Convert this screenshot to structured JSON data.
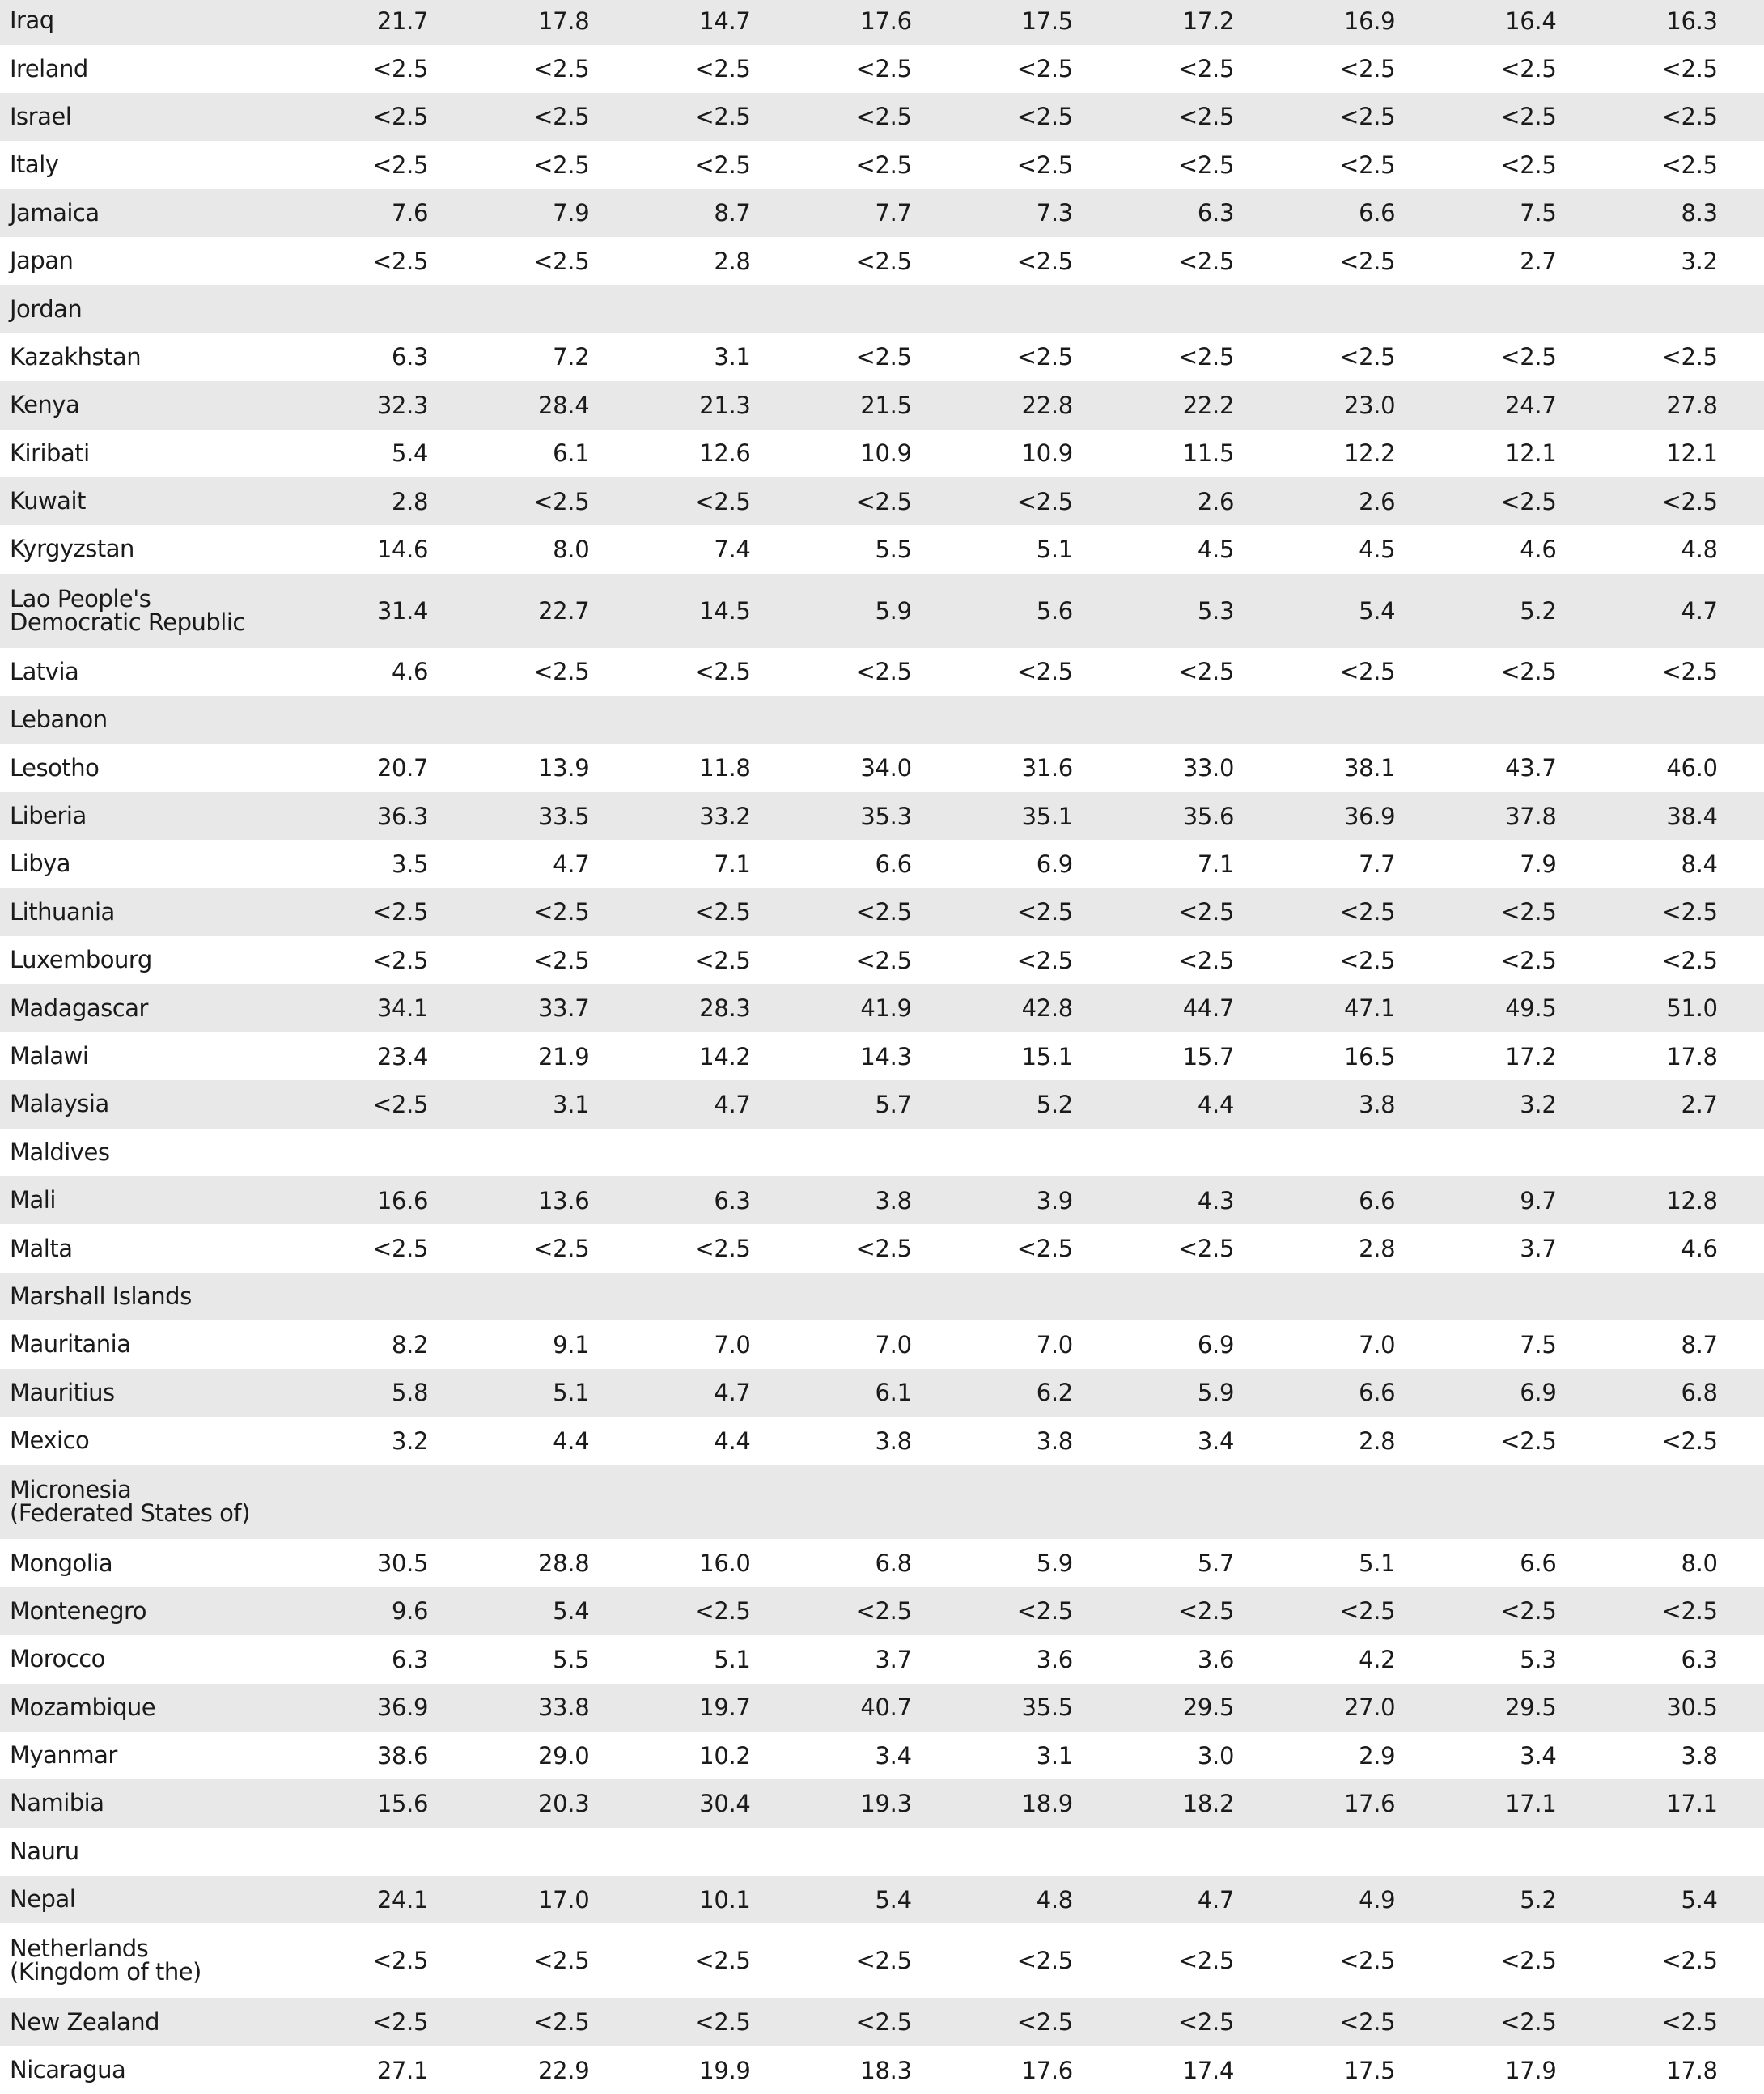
{
  "rows": [
    {
      "name": "Iraq",
      "values": [
        "21.7",
        "17.8",
        "14.7",
        "17.6",
        "17.5",
        "17.2",
        "16.9",
        "16.4",
        "16.3"
      ]
    },
    {
      "name": "Ireland",
      "values": [
        "<2.5",
        "<2.5",
        "<2.5",
        "<2.5",
        "<2.5",
        "<2.5",
        "<2.5",
        "<2.5",
        "<2.5"
      ]
    },
    {
      "name": "Israel",
      "values": [
        "<2.5",
        "<2.5",
        "<2.5",
        "<2.5",
        "<2.5",
        "<2.5",
        "<2.5",
        "<2.5",
        "<2.5"
      ]
    },
    {
      "name": "Italy",
      "values": [
        "<2.5",
        "<2.5",
        "<2.5",
        "<2.5",
        "<2.5",
        "<2.5",
        "<2.5",
        "<2.5",
        "<2.5"
      ]
    },
    {
      "name": "Jamaica",
      "values": [
        "7.6",
        "7.9",
        "8.7",
        "7.7",
        "7.3",
        "6.3",
        "6.6",
        "7.5",
        "8.3"
      ]
    },
    {
      "name": "Japan",
      "values": [
        "<2.5",
        "<2.5",
        "2.8",
        "<2.5",
        "<2.5",
        "<2.5",
        "<2.5",
        "2.7",
        "3.2"
      ]
    },
    {
      "name": "Jordan",
      "values": []
    },
    {
      "name": "Kazakhstan",
      "values": [
        "6.3",
        "7.2",
        "3.1",
        "<2.5",
        "<2.5",
        "<2.5",
        "<2.5",
        "<2.5",
        "<2.5"
      ]
    },
    {
      "name": "Kenya",
      "values": [
        "32.3",
        "28.4",
        "21.3",
        "21.5",
        "22.8",
        "22.2",
        "23.0",
        "24.7",
        "27.8"
      ]
    },
    {
      "name": "Kiribati",
      "values": [
        "5.4",
        "6.1",
        "12.6",
        "10.9",
        "10.9",
        "11.5",
        "12.2",
        "12.1",
        "12.1"
      ]
    },
    {
      "name": "Kuwait",
      "values": [
        "2.8",
        "<2.5",
        "<2.5",
        "<2.5",
        "<2.5",
        "2.6",
        "2.6",
        "<2.5",
        "<2.5"
      ]
    },
    {
      "name": "Kyrgyzstan",
      "values": [
        "14.6",
        "8.0",
        "7.4",
        "5.5",
        "5.1",
        "4.5",
        "4.5",
        "4.6",
        "4.8"
      ]
    },
    {
      "name": "Lao People's Democratic Republic",
      "values": [
        "31.4",
        "22.7",
        "14.5",
        "5.9",
        "5.6",
        "5.3",
        "5.4",
        "5.2",
        "4.7"
      ]
    },
    {
      "name": "Latvia",
      "values": [
        "4.6",
        "<2.5",
        "<2.5",
        "<2.5",
        "<2.5",
        "<2.5",
        "<2.5",
        "<2.5",
        "<2.5"
      ]
    },
    {
      "name": "Lebanon",
      "values": []
    },
    {
      "name": "Lesotho",
      "values": [
        "20.7",
        "13.9",
        "11.8",
        "34.0",
        "31.6",
        "33.0",
        "38.1",
        "43.7",
        "46.0"
      ]
    },
    {
      "name": "Liberia",
      "values": [
        "36.3",
        "33.5",
        "33.2",
        "35.3",
        "35.1",
        "35.6",
        "36.9",
        "37.8",
        "38.4"
      ]
    },
    {
      "name": "Libya",
      "values": [
        "3.5",
        "4.7",
        "7.1",
        "6.6",
        "6.9",
        "7.1",
        "7.7",
        "7.9",
        "8.4"
      ]
    },
    {
      "name": "Lithuania",
      "values": [
        "<2.5",
        "<2.5",
        "<2.5",
        "<2.5",
        "<2.5",
        "<2.5",
        "<2.5",
        "<2.5",
        "<2.5"
      ]
    },
    {
      "name": "Luxembourg",
      "values": [
        "<2.5",
        "<2.5",
        "<2.5",
        "<2.5",
        "<2.5",
        "<2.5",
        "<2.5",
        "<2.5",
        "<2.5"
      ]
    },
    {
      "name": "Madagascar",
      "values": [
        "34.1",
        "33.7",
        "28.3",
        "41.9",
        "42.8",
        "44.7",
        "47.1",
        "49.5",
        "51.0"
      ]
    },
    {
      "name": "Malawi",
      "values": [
        "23.4",
        "21.9",
        "14.2",
        "14.3",
        "15.1",
        "15.7",
        "16.5",
        "17.2",
        "17.8"
      ]
    },
    {
      "name": "Malaysia",
      "values": [
        "<2.5",
        "3.1",
        "4.7",
        "5.7",
        "5.2",
        "4.4",
        "3.8",
        "3.2",
        "2.7"
      ]
    },
    {
      "name": "Maldives",
      "values": []
    },
    {
      "name": "Mali",
      "values": [
        "16.6",
        "13.6",
        "6.3",
        "3.8",
        "3.9",
        "4.3",
        "6.6",
        "9.7",
        "12.8"
      ]
    },
    {
      "name": "Malta",
      "values": [
        "<2.5",
        "<2.5",
        "<2.5",
        "<2.5",
        "<2.5",
        "<2.5",
        "2.8",
        "3.7",
        "4.6"
      ]
    },
    {
      "name": "Marshall Islands",
      "values": []
    },
    {
      "name": "Mauritania",
      "values": [
        "8.2",
        "9.1",
        "7.0",
        "7.0",
        "7.0",
        "6.9",
        "7.0",
        "7.5",
        "8.7"
      ]
    },
    {
      "name": "Mauritius",
      "values": [
        "5.8",
        "5.1",
        "4.7",
        "6.1",
        "6.2",
        "5.9",
        "6.6",
        "6.9",
        "6.8"
      ]
    },
    {
      "name": "Mexico",
      "values": [
        "3.2",
        "4.4",
        "4.4",
        "3.8",
        "3.8",
        "3.4",
        "2.8",
        "<2.5",
        "<2.5"
      ]
    },
    {
      "name": "Micronesia (Federated States of)",
      "values": []
    },
    {
      "name": "Mongolia",
      "values": [
        "30.5",
        "28.8",
        "16.0",
        "6.8",
        "5.9",
        "5.7",
        "5.1",
        "6.6",
        "8.0"
      ]
    },
    {
      "name": "Montenegro",
      "values": [
        "9.6",
        "5.4",
        "<2.5",
        "<2.5",
        "<2.5",
        "<2.5",
        "<2.5",
        "<2.5",
        "<2.5"
      ]
    },
    {
      "name": "Morocco",
      "values": [
        "6.3",
        "5.5",
        "5.1",
        "3.7",
        "3.6",
        "3.6",
        "4.2",
        "5.3",
        "6.3"
      ]
    },
    {
      "name": "Mozambique",
      "values": [
        "36.9",
        "33.8",
        "19.7",
        "40.7",
        "35.5",
        "29.5",
        "27.0",
        "29.5",
        "30.5"
      ]
    },
    {
      "name": "Myanmar",
      "values": [
        "38.6",
        "29.0",
        "10.2",
        "3.4",
        "3.1",
        "3.0",
        "2.9",
        "3.4",
        "3.8"
      ]
    },
    {
      "name": "Namibia",
      "values": [
        "15.6",
        "20.3",
        "30.4",
        "19.3",
        "18.9",
        "18.2",
        "17.6",
        "17.1",
        "17.1"
      ]
    },
    {
      "name": "Nauru",
      "values": []
    },
    {
      "name": "Nepal",
      "values": [
        "24.1",
        "17.0",
        "10.1",
        "5.4",
        "4.8",
        "4.7",
        "4.9",
        "5.2",
        "5.4"
      ]
    },
    {
      "name": "Netherlands (Kingdom of the)",
      "values": [
        "<2.5",
        "<2.5",
        "<2.5",
        "<2.5",
        "<2.5",
        "<2.5",
        "<2.5",
        "<2.5",
        "<2.5"
      ]
    },
    {
      "name": "New Zealand",
      "values": [
        "<2.5",
        "<2.5",
        "<2.5",
        "<2.5",
        "<2.5",
        "<2.5",
        "<2.5",
        "<2.5",
        "<2.5"
      ]
    },
    {
      "name": "Nicaragua",
      "values": [
        "27.1",
        "22.9",
        "19.9",
        "18.3",
        "17.6",
        "17.4",
        "17.5",
        "17.9",
        "17.8"
      ]
    }
  ],
  "colors": {
    "shaded_row": "#e8e8e8",
    "plain_row": "#ffffff",
    "text": "#1a1a1a"
  }
}
